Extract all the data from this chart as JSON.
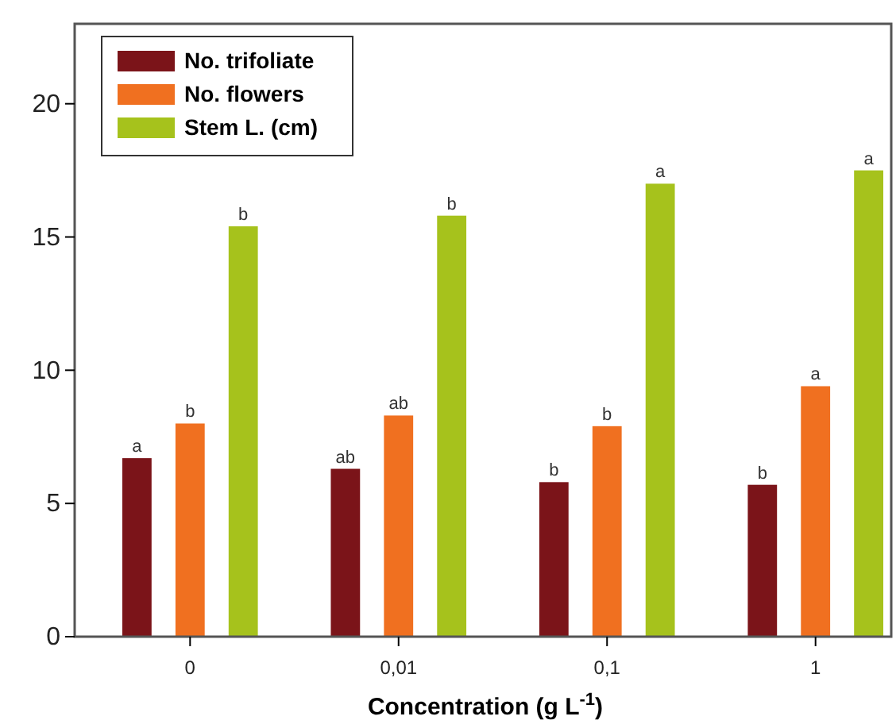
{
  "chart_data": {
    "type": "bar",
    "xlabel": "Concentration (g L$^{-1}$)",
    "categories": [
      "0",
      "0,01",
      "0,1",
      "1"
    ],
    "series": [
      {
        "name": "No. trifoliate",
        "color": "#7b1419",
        "values": [
          6.7,
          6.3,
          5.8,
          5.7
        ],
        "value_labels": [
          "a",
          "ab",
          "b",
          "b"
        ]
      },
      {
        "name": "No. flowers",
        "color": "#f07020",
        "values": [
          8.0,
          8.3,
          7.9,
          9.4
        ],
        "value_labels": [
          "b",
          "ab",
          "b",
          "a"
        ]
      },
      {
        "name": "Stem L. (cm)",
        "color": "#a6c21c",
        "values": [
          15.4,
          15.8,
          17.0,
          17.5
        ],
        "value_labels": [
          "b",
          "b",
          "a",
          "a"
        ]
      }
    ],
    "ylim": [
      0,
      23
    ],
    "yticks": [
      0,
      5,
      10,
      15,
      20
    ],
    "grid": false,
    "legend": "top left"
  }
}
